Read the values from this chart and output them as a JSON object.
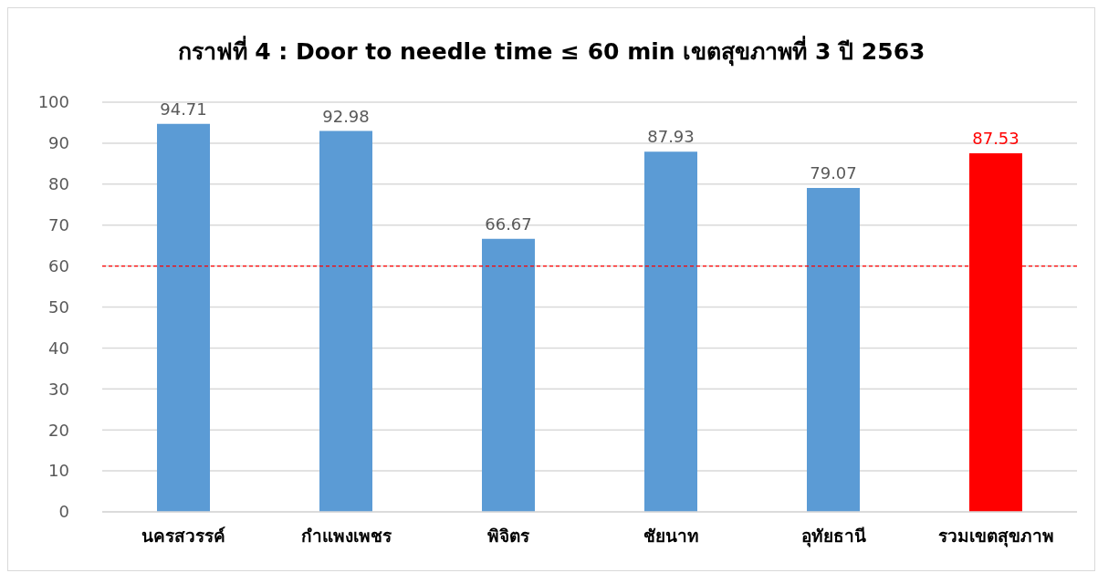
{
  "chart_data": {
    "type": "bar",
    "title": "กราฟที่ 4 : Door to needle time ≤ 60 min เขตสุขภาพที่ 3 ปี 2563",
    "categories": [
      "นครสวรรค์",
      "กำแพงเพชร",
      "พิจิตร",
      "ชัยนาท",
      "อุทัยธานี",
      "รวมเขตสุขภาพ"
    ],
    "values": [
      94.71,
      92.98,
      66.67,
      87.93,
      79.07,
      87.53
    ],
    "color": "#5b9bd5",
    "colors": [
      "#5b9bd5",
      "#5b9bd5",
      "#5b9bd5",
      "#5b9bd5",
      "#5b9bd5",
      "#ff0000"
    ],
    "ylim": [
      0,
      100
    ],
    "yticks": [
      0,
      10,
      20,
      30,
      40,
      50,
      60,
      70,
      80,
      90,
      100
    ],
    "grid": "y",
    "data_labels": true,
    "ref_lines": [
      {
        "axis": "y",
        "value": 60,
        "color": "#ff0000",
        "line_style": "dashed"
      }
    ]
  }
}
